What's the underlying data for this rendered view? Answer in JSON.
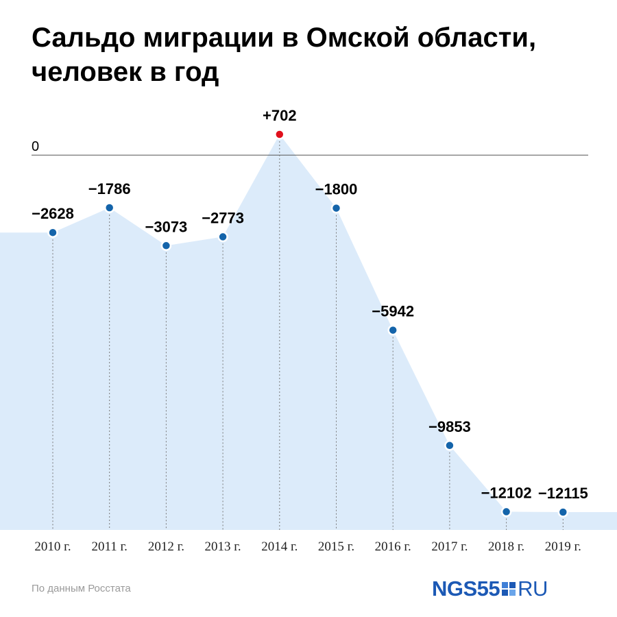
{
  "header": {
    "title_line1": "Сальдо миграции в Омской области,",
    "title_line2": "человек в год"
  },
  "footer": {
    "source": "По данным Росстата",
    "logo_main": "NGS55",
    "logo_tld": "RU"
  },
  "colors": {
    "area_fill": "#dcebfa",
    "point": "#1464aa",
    "point_positive": "#e0101c",
    "zero_line": "#555555",
    "guide_line": "#777777",
    "brand": "#1c59b5"
  },
  "chart_data": {
    "type": "area",
    "categories": [
      "2010 г.",
      "2011 г.",
      "2012 г.",
      "2013 г.",
      "2014 г.",
      "2015 г.",
      "2016 г.",
      "2017 г.",
      "2018 г.",
      "2019 г."
    ],
    "values": [
      -2628,
      -1786,
      -3073,
      -2773,
      702,
      -1800,
      -5942,
      -9853,
      -12102,
      -12115
    ],
    "value_labels": [
      "−2628",
      "−1786",
      "−3073",
      "−2773",
      "+702",
      "−1800",
      "−5942",
      "−9853",
      "−12102",
      "−12115"
    ],
    "zero_line_label": "0",
    "ylim": [
      -13500,
      702
    ],
    "grid": false,
    "legend": "none"
  }
}
